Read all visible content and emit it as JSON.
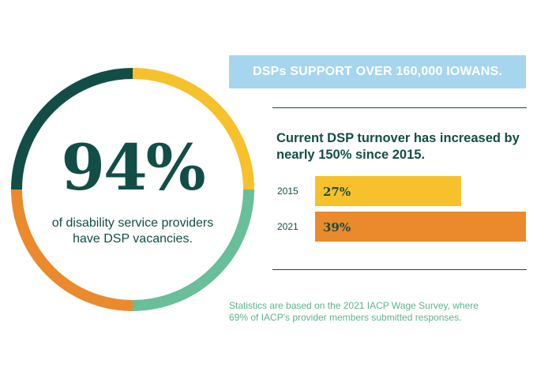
{
  "headline": {
    "value": "94%",
    "caption_line1": "of disability service providers",
    "caption_line2": "have DSP vacancies."
  },
  "banner": {
    "text": "DSPs SUPPORT OVER 160,000 IOWANS."
  },
  "turnover": {
    "heading_line1": "Current DSP turnover has increased by",
    "heading_line2": "nearly 150% since 2015."
  },
  "footnote": {
    "line1": "Statistics are based on the 2021 IACP Wage Survey, where",
    "line2": "69% of IACP's provider members submitted responses."
  },
  "colors": {
    "dark_green": "#124e46",
    "yellow": "#f6c12a",
    "mint": "#68bf99",
    "orange": "#ea8a2d",
    "light_blue": "#a6d5ee"
  },
  "chart_data": [
    {
      "type": "pie",
      "title": "",
      "slices": [
        {
          "label": "",
          "value": 25,
          "color": "#f6c12a"
        },
        {
          "label": "",
          "value": 25,
          "color": "#68bf99"
        },
        {
          "label": "",
          "value": 25,
          "color": "#ea8a2d"
        },
        {
          "label": "",
          "value": 25,
          "color": "#124e46"
        }
      ]
    },
    {
      "type": "bar",
      "orientation": "horizontal",
      "categories": [
        "2015",
        "2021"
      ],
      "values": [
        27,
        39
      ],
      "value_labels": [
        "27%",
        "39%"
      ],
      "colors": [
        "#f6c12a",
        "#ea8a2d"
      ],
      "xlim": [
        0,
        39
      ]
    }
  ]
}
